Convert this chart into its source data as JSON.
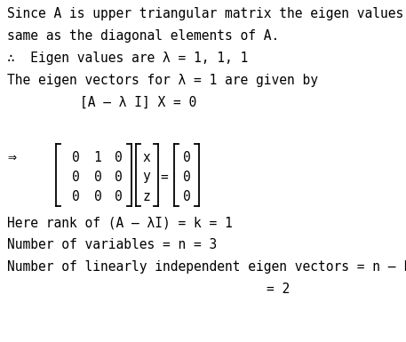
{
  "bg_color": "#ffffff",
  "text_color": "#000000",
  "font_family": "DejaVu Sans Mono",
  "line1": "Since A is upper triangular matrix the eigen values are",
  "line2": "same as the diagonal elements of A.",
  "line3": "∴  Eigen values are λ = 1, 1, 1",
  "line4": "The eigen vectors for λ = 1 are given by",
  "line5": "[A – λ I] X = 0",
  "line6": "Here rank of (A – λI) = k = 1",
  "line7": "Number of variables = n = 3",
  "line8": "Number of linearly independent eigen vectors = n – k",
  "line9": "= 2",
  "arrow": "⇒",
  "matrix_rows": [
    [
      "0",
      "1",
      "0"
    ],
    [
      "0",
      "0",
      "0"
    ],
    [
      "0",
      "0",
      "0"
    ]
  ],
  "vector_x": [
    "x",
    "y",
    "z"
  ],
  "vector_0": [
    "0",
    "0",
    "0"
  ],
  "font_size": 10.5,
  "matrix_font_size": 10.5
}
